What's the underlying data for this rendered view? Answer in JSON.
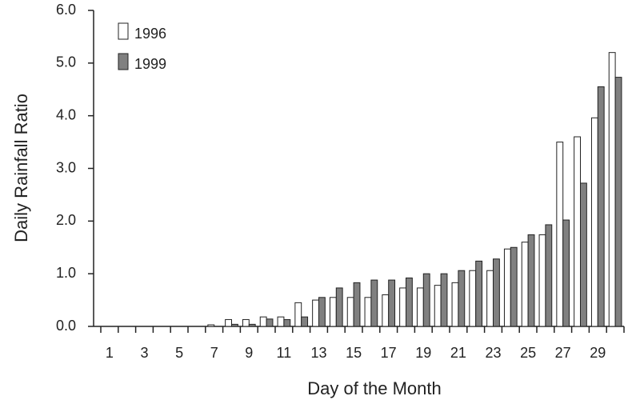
{
  "chart_data": {
    "type": "bar",
    "x_label": "Day of the Month",
    "y_label": "Daily Rainfall Ratio",
    "categories": [
      "1",
      null,
      "3",
      null,
      "5",
      null,
      "7",
      null,
      "9",
      null,
      "11",
      null,
      "13",
      null,
      "15",
      null,
      "17",
      null,
      "19",
      null,
      "21",
      null,
      "23",
      null,
      "25",
      null,
      "27",
      null,
      "29",
      null
    ],
    "series": [
      {
        "name": "1996",
        "color": "#ffffff",
        "values": [
          0,
          0,
          0,
          0,
          0,
          0,
          0.03,
          0.13,
          0.13,
          0.18,
          0.18,
          0.45,
          0.5,
          0.55,
          0.55,
          0.55,
          0.6,
          0.73,
          0.73,
          0.78,
          0.83,
          1.06,
          1.06,
          1.47,
          1.6,
          1.74,
          3.5,
          3.6,
          3.96,
          5.2
        ]
      },
      {
        "name": "1999",
        "color": "#808080",
        "values": [
          0,
          0,
          0,
          0,
          0,
          0,
          0,
          0.04,
          0.04,
          0.14,
          0.13,
          0.18,
          0.55,
          0.73,
          0.83,
          0.88,
          0.88,
          0.92,
          1.0,
          1.0,
          1.06,
          1.24,
          1.28,
          1.5,
          1.74,
          1.93,
          2.02,
          2.72,
          4.55,
          4.73
        ]
      }
    ],
    "ylim": [
      0,
      6
    ],
    "yticks": [
      {
        "value": 0,
        "label": "0.0"
      },
      {
        "value": 1,
        "label": "1.0"
      },
      {
        "value": 2,
        "label": "2.0"
      },
      {
        "value": 3,
        "label": "3.0"
      },
      {
        "value": 4,
        "label": "4.0"
      },
      {
        "value": 5,
        "label": "5.0"
      },
      {
        "value": 6,
        "label": "6.0"
      }
    ],
    "legend": "top-left"
  }
}
